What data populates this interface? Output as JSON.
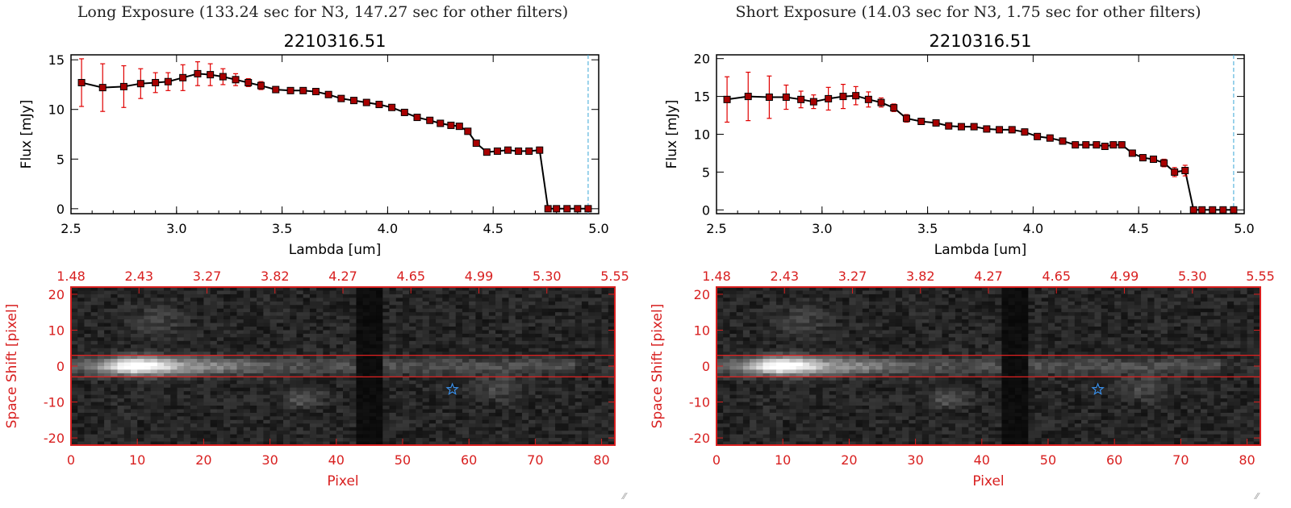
{
  "colors": {
    "axis": "#000000",
    "line": "#000000",
    "marker": "#a80000",
    "errorbar": "#e00000",
    "cutoff_line": "#3aa7d8",
    "image_axis": "#d81f1f",
    "extraction_box": "#e02020",
    "star_marker": "#3a8fe8",
    "background": "#ffffff"
  },
  "icons": {
    "star": "star-icon",
    "grip": "resize-grip-icon"
  },
  "panels": [
    {
      "exposure_title": "Long Exposure (133.24 sec for N3, 147.27 sec for other filters)",
      "grip_glyph": "⁄⁄"
    },
    {
      "exposure_title": "Short Exposure (14.03 sec for N3, 1.75 sec for other filters)",
      "grip_glyph": "⁄⁄"
    }
  ],
  "chart_data": [
    {
      "type": "line",
      "title": "2210316.51",
      "xlabel": "Lambda [um]",
      "ylabel": "Flux [mJy]",
      "xlim": [
        2.5,
        5.0
      ],
      "ylim": [
        -0.5,
        15.5
      ],
      "xticks": [
        "2.5",
        "3.0",
        "3.5",
        "4.0",
        "4.5",
        "5.0"
      ],
      "xtick_values": [
        2.5,
        3.0,
        3.5,
        4.0,
        4.5,
        5.0
      ],
      "yticks": [
        "0",
        "5",
        "10",
        "15"
      ],
      "ytick_values": [
        0,
        5,
        10,
        15
      ],
      "cutoff_x": 4.95,
      "x": [
        2.55,
        2.65,
        2.75,
        2.83,
        2.9,
        2.96,
        3.03,
        3.1,
        3.16,
        3.22,
        3.28,
        3.34,
        3.4,
        3.47,
        3.54,
        3.6,
        3.66,
        3.72,
        3.78,
        3.84,
        3.9,
        3.96,
        4.02,
        4.08,
        4.14,
        4.2,
        4.25,
        4.3,
        4.34,
        4.38,
        4.42,
        4.47,
        4.52,
        4.57,
        4.62,
        4.67,
        4.72,
        4.76,
        4.8,
        4.85,
        4.9,
        4.95
      ],
      "y": [
        12.7,
        12.2,
        12.3,
        12.6,
        12.7,
        12.8,
        13.2,
        13.6,
        13.5,
        13.3,
        13.0,
        12.7,
        12.4,
        12.0,
        11.9,
        11.9,
        11.8,
        11.5,
        11.1,
        10.9,
        10.7,
        10.5,
        10.2,
        9.7,
        9.2,
        8.9,
        8.6,
        8.4,
        8.3,
        7.8,
        6.6,
        5.7,
        5.8,
        5.9,
        5.8,
        5.8,
        5.9,
        0.0,
        0.0,
        0.0,
        0.0,
        0.0
      ],
      "yerr": [
        2.4,
        2.4,
        2.1,
        1.5,
        1.0,
        0.9,
        1.3,
        1.2,
        1.1,
        0.8,
        0.6,
        0.4,
        0.4,
        0.3,
        0.3,
        0.3,
        0.3,
        0.3,
        0.3,
        0.3,
        0.3,
        0.3,
        0.3,
        0.3,
        0.3,
        0.3,
        0.3,
        0.3,
        0.3,
        0.3,
        0.3,
        0.3,
        0.3,
        0.3,
        0.3,
        0.3,
        0.3,
        0.0,
        0.0,
        0.0,
        0.0,
        0.0
      ]
    },
    {
      "type": "heatmap",
      "xlabel": "Pixel",
      "ylabel": "Space Shift [pixel]",
      "xlim": [
        0,
        82
      ],
      "ylim": [
        -22,
        22
      ],
      "xticks": [
        "0",
        "10",
        "20",
        "30",
        "40",
        "50",
        "60",
        "70",
        "80"
      ],
      "xtick_values": [
        0,
        10,
        20,
        30,
        40,
        50,
        60,
        70,
        80
      ],
      "yticks": [
        "-20",
        "-10",
        "0",
        "10",
        "20"
      ],
      "ytick_values": [
        -20,
        -10,
        0,
        10,
        20
      ],
      "top_xticks": [
        "1.48",
        "2.43",
        "3.27",
        "3.82",
        "4.27",
        "4.65",
        "4.99",
        "5.30",
        "5.55"
      ],
      "extraction_box": [
        -3,
        3
      ],
      "star": {
        "x": 57.5,
        "y": -6.5
      }
    },
    {
      "type": "line",
      "title": "2210316.51",
      "xlabel": "Lambda [um]",
      "ylabel": "Flux [mJy]",
      "xlim": [
        2.5,
        5.0
      ],
      "ylim": [
        -0.5,
        20.5
      ],
      "xticks": [
        "2.5",
        "3.0",
        "3.5",
        "4.0",
        "4.5",
        "5.0"
      ],
      "xtick_values": [
        2.5,
        3.0,
        3.5,
        4.0,
        4.5,
        5.0
      ],
      "yticks": [
        "0",
        "5",
        "10",
        "15",
        "20"
      ],
      "ytick_values": [
        0,
        5,
        10,
        15,
        20
      ],
      "cutoff_x": 4.95,
      "x": [
        2.55,
        2.65,
        2.75,
        2.83,
        2.9,
        2.96,
        3.03,
        3.1,
        3.16,
        3.22,
        3.28,
        3.34,
        3.4,
        3.47,
        3.54,
        3.6,
        3.66,
        3.72,
        3.78,
        3.84,
        3.9,
        3.96,
        4.02,
        4.08,
        4.14,
        4.2,
        4.25,
        4.3,
        4.34,
        4.38,
        4.42,
        4.47,
        4.52,
        4.57,
        4.62,
        4.67,
        4.72,
        4.76,
        4.8,
        4.85,
        4.9,
        4.95
      ],
      "y": [
        14.6,
        15.0,
        14.9,
        14.9,
        14.6,
        14.3,
        14.7,
        15.0,
        15.1,
        14.6,
        14.2,
        13.5,
        12.1,
        11.7,
        11.5,
        11.1,
        11.0,
        11.0,
        10.7,
        10.6,
        10.6,
        10.3,
        9.7,
        9.5,
        9.1,
        8.6,
        8.6,
        8.6,
        8.4,
        8.6,
        8.6,
        7.5,
        6.9,
        6.7,
        6.2,
        5.0,
        5.2,
        0.0,
        0.0,
        0.0,
        0.0,
        0.0
      ],
      "yerr": [
        3.0,
        3.2,
        2.8,
        1.6,
        1.1,
        0.9,
        1.5,
        1.6,
        1.2,
        1.0,
        0.6,
        0.5,
        0.5,
        0.4,
        0.4,
        0.4,
        0.4,
        0.4,
        0.4,
        0.4,
        0.4,
        0.4,
        0.4,
        0.4,
        0.4,
        0.4,
        0.4,
        0.4,
        0.4,
        0.4,
        0.4,
        0.4,
        0.4,
        0.4,
        0.5,
        0.6,
        0.7,
        0.0,
        0.0,
        0.0,
        0.0,
        0.0
      ]
    },
    {
      "type": "heatmap",
      "xlabel": "Pixel",
      "ylabel": "Space Shift [pixel]",
      "xlim": [
        0,
        82
      ],
      "ylim": [
        -22,
        22
      ],
      "xticks": [
        "0",
        "10",
        "20",
        "30",
        "40",
        "50",
        "60",
        "70",
        "80"
      ],
      "xtick_values": [
        0,
        10,
        20,
        30,
        40,
        50,
        60,
        70,
        80
      ],
      "yticks": [
        "-20",
        "-10",
        "0",
        "10",
        "20"
      ],
      "ytick_values": [
        -20,
        -10,
        0,
        10,
        20
      ],
      "top_xticks": [
        "1.48",
        "2.43",
        "3.27",
        "3.82",
        "4.27",
        "4.65",
        "4.99",
        "5.30",
        "5.55"
      ],
      "extraction_box": [
        -3,
        3
      ],
      "star": {
        "x": 57.5,
        "y": -6.5
      }
    }
  ]
}
